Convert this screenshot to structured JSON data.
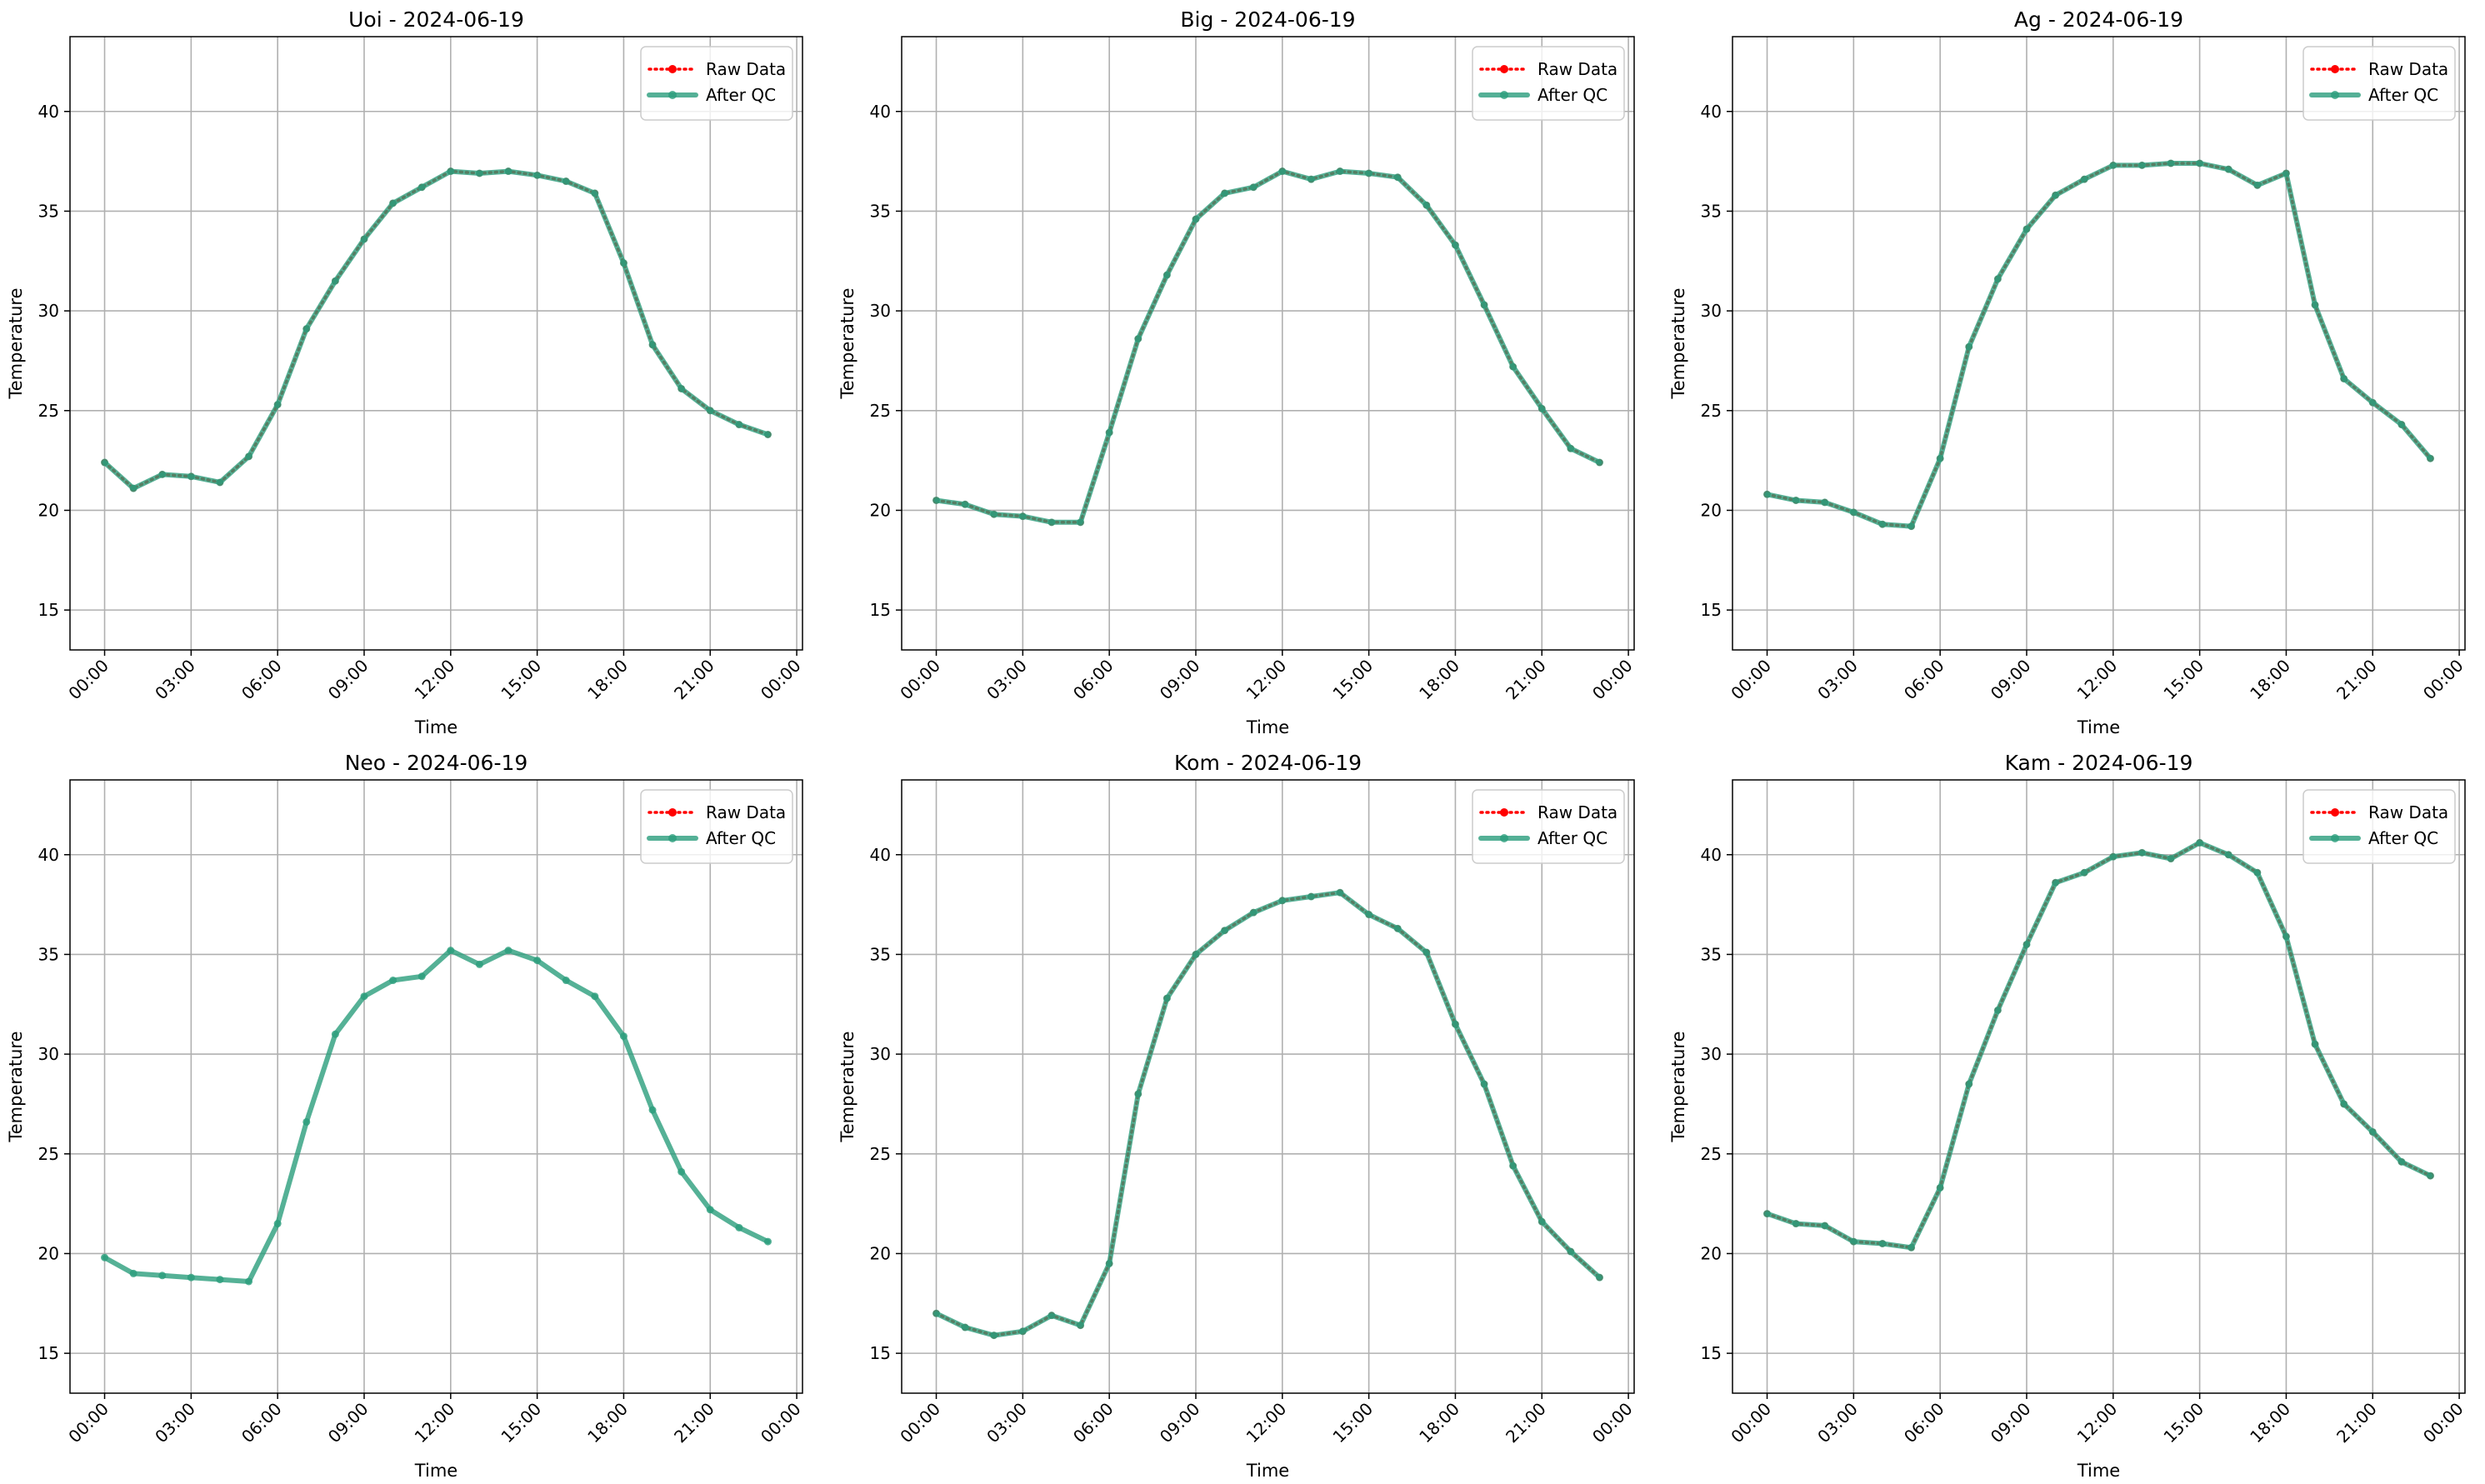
{
  "chart_data": [
    {
      "type": "line",
      "title": "Uoi - 2024-06-19",
      "xlabel": "Time",
      "ylabel": "Temperature",
      "x": [
        0,
        1,
        2,
        3,
        4,
        5,
        6,
        7,
        8,
        9,
        10,
        11,
        12,
        13,
        14,
        15,
        16,
        17,
        18,
        19,
        20,
        21,
        22,
        23
      ],
      "series": [
        {
          "name": "Raw Data",
          "color": "#ff0000",
          "values": [
            22.4,
            21.1,
            21.8,
            21.7,
            21.4,
            22.7,
            25.3,
            29.1,
            31.5,
            33.6,
            35.4,
            36.2,
            37.0,
            36.9,
            37.0,
            36.8,
            36.5,
            35.9,
            32.4,
            28.3,
            26.1,
            25.0,
            24.3,
            23.8
          ]
        },
        {
          "name": "After QC",
          "color": "#2a9d7c",
          "values": [
            22.4,
            21.1,
            21.8,
            21.7,
            21.4,
            22.7,
            25.3,
            29.1,
            31.5,
            33.6,
            35.4,
            36.2,
            37.0,
            36.9,
            37.0,
            36.8,
            36.5,
            35.9,
            32.4,
            28.3,
            26.1,
            25.0,
            24.3,
            23.8
          ]
        }
      ],
      "xlim": [
        -1.2,
        24.2
      ],
      "ylim": [
        13,
        43.75
      ],
      "xticks": [
        {
          "value": 0,
          "label": "00:00"
        },
        {
          "value": 3,
          "label": "03:00"
        },
        {
          "value": 6,
          "label": "06:00"
        },
        {
          "value": 9,
          "label": "09:00"
        },
        {
          "value": 12,
          "label": "12:00"
        },
        {
          "value": 15,
          "label": "15:00"
        },
        {
          "value": 18,
          "label": "18:00"
        },
        {
          "value": 21,
          "label": "21:00"
        },
        {
          "value": 24,
          "label": "00:00"
        }
      ],
      "yticks": [
        15,
        20,
        25,
        30,
        35,
        40
      ],
      "grid": true,
      "legend": "upper right"
    },
    {
      "type": "line",
      "title": "Big - 2024-06-19",
      "xlabel": "Time",
      "ylabel": "Temperature",
      "x": [
        0,
        1,
        2,
        3,
        4,
        5,
        6,
        7,
        8,
        9,
        10,
        11,
        12,
        13,
        14,
        15,
        16,
        17,
        18,
        19,
        20,
        21,
        22,
        23
      ],
      "series": [
        {
          "name": "Raw Data",
          "color": "#ff0000",
          "values": [
            20.5,
            20.3,
            19.8,
            19.7,
            19.4,
            19.4,
            23.9,
            28.6,
            31.8,
            34.6,
            35.9,
            36.2,
            37.0,
            36.6,
            37.0,
            36.9,
            36.7,
            35.3,
            33.3,
            30.3,
            27.2,
            25.1,
            23.1,
            22.4
          ]
        },
        {
          "name": "After QC",
          "color": "#2a9d7c",
          "values": [
            20.5,
            20.3,
            19.8,
            19.7,
            19.4,
            19.4,
            23.9,
            28.6,
            31.8,
            34.6,
            35.9,
            36.2,
            37.0,
            36.6,
            37.0,
            36.9,
            36.7,
            35.3,
            33.3,
            30.3,
            27.2,
            25.1,
            23.1,
            22.4
          ]
        }
      ],
      "xlim": [
        -1.2,
        24.2
      ],
      "ylim": [
        13,
        43.75
      ],
      "xticks": [
        {
          "value": 0,
          "label": "00:00"
        },
        {
          "value": 3,
          "label": "03:00"
        },
        {
          "value": 6,
          "label": "06:00"
        },
        {
          "value": 9,
          "label": "09:00"
        },
        {
          "value": 12,
          "label": "12:00"
        },
        {
          "value": 15,
          "label": "15:00"
        },
        {
          "value": 18,
          "label": "18:00"
        },
        {
          "value": 21,
          "label": "21:00"
        },
        {
          "value": 24,
          "label": "00:00"
        }
      ],
      "yticks": [
        15,
        20,
        25,
        30,
        35,
        40
      ],
      "grid": true,
      "legend": "upper right"
    },
    {
      "type": "line",
      "title": "Ag - 2024-06-19",
      "xlabel": "Time",
      "ylabel": "Temperature",
      "x": [
        0,
        1,
        2,
        3,
        4,
        5,
        6,
        7,
        8,
        9,
        10,
        11,
        12,
        13,
        14,
        15,
        16,
        17,
        18,
        19,
        20,
        21,
        22,
        23
      ],
      "series": [
        {
          "name": "Raw Data",
          "color": "#ff0000",
          "values": [
            20.8,
            20.5,
            20.4,
            19.9,
            19.3,
            19.2,
            22.6,
            28.2,
            31.6,
            34.1,
            35.8,
            36.6,
            37.3,
            37.3,
            37.4,
            37.4,
            37.1,
            36.3,
            36.9,
            30.3,
            26.6,
            25.4,
            24.3,
            22.6
          ]
        },
        {
          "name": "After QC",
          "color": "#2a9d7c",
          "values": [
            20.8,
            20.5,
            20.4,
            19.9,
            19.3,
            19.2,
            22.6,
            28.2,
            31.6,
            34.1,
            35.8,
            36.6,
            37.3,
            37.3,
            37.4,
            37.4,
            37.1,
            36.3,
            36.9,
            30.3,
            26.6,
            25.4,
            24.3,
            22.6
          ]
        }
      ],
      "xlim": [
        -1.2,
        24.2
      ],
      "ylim": [
        13,
        43.75
      ],
      "xticks": [
        {
          "value": 0,
          "label": "00:00"
        },
        {
          "value": 3,
          "label": "03:00"
        },
        {
          "value": 6,
          "label": "06:00"
        },
        {
          "value": 9,
          "label": "09:00"
        },
        {
          "value": 12,
          "label": "12:00"
        },
        {
          "value": 15,
          "label": "15:00"
        },
        {
          "value": 18,
          "label": "18:00"
        },
        {
          "value": 21,
          "label": "21:00"
        },
        {
          "value": 24,
          "label": "00:00"
        }
      ],
      "yticks": [
        15,
        20,
        25,
        30,
        35,
        40
      ],
      "grid": true,
      "legend": "upper right"
    },
    {
      "type": "line",
      "title": "Neo - 2024-06-19",
      "xlabel": "Time",
      "ylabel": "Temperature",
      "x": [
        0,
        1,
        2,
        3,
        4,
        5,
        6,
        7,
        8,
        9,
        10,
        11,
        12,
        13,
        14,
        15,
        16,
        17,
        18,
        19,
        20,
        21,
        22,
        23
      ],
      "series": [
        {
          "name": "Raw Data",
          "color": "#ff0000",
          "values": [
            null,
            null,
            null,
            null,
            null,
            null,
            null,
            null,
            null,
            null,
            null,
            null,
            null,
            null,
            null,
            null,
            null,
            null,
            null,
            null,
            null,
            null,
            null,
            null
          ]
        },
        {
          "name": "After QC",
          "color": "#2a9d7c",
          "values": [
            19.8,
            19.0,
            18.9,
            18.8,
            18.7,
            18.6,
            21.5,
            26.6,
            31.0,
            32.9,
            33.7,
            33.9,
            35.2,
            34.5,
            35.2,
            34.7,
            33.7,
            32.9,
            30.9,
            27.2,
            24.1,
            22.2,
            21.3,
            20.6
          ]
        }
      ],
      "xlim": [
        -1.2,
        24.2
      ],
      "ylim": [
        13,
        43.75
      ],
      "xticks": [
        {
          "value": 0,
          "label": "00:00"
        },
        {
          "value": 3,
          "label": "03:00"
        },
        {
          "value": 6,
          "label": "06:00"
        },
        {
          "value": 9,
          "label": "09:00"
        },
        {
          "value": 12,
          "label": "12:00"
        },
        {
          "value": 15,
          "label": "15:00"
        },
        {
          "value": 18,
          "label": "18:00"
        },
        {
          "value": 21,
          "label": "21:00"
        },
        {
          "value": 24,
          "label": "00:00"
        }
      ],
      "yticks": [
        15,
        20,
        25,
        30,
        35,
        40
      ],
      "grid": true,
      "legend": "upper right"
    },
    {
      "type": "line",
      "title": "Kom - 2024-06-19",
      "xlabel": "Time",
      "ylabel": "Temperature",
      "x": [
        0,
        1,
        2,
        3,
        4,
        5,
        6,
        7,
        8,
        9,
        10,
        11,
        12,
        13,
        14,
        15,
        16,
        17,
        18,
        19,
        20,
        21,
        22,
        23
      ],
      "series": [
        {
          "name": "Raw Data",
          "color": "#ff0000",
          "values": [
            17.0,
            16.3,
            15.9,
            16.1,
            16.9,
            16.4,
            19.5,
            28.0,
            32.8,
            35.0,
            36.2,
            37.1,
            37.7,
            37.9,
            38.1,
            37.0,
            36.3,
            35.1,
            31.5,
            28.5,
            24.4,
            21.6,
            20.1,
            18.8
          ]
        },
        {
          "name": "After QC",
          "color": "#2a9d7c",
          "values": [
            17.0,
            16.3,
            15.9,
            16.1,
            16.9,
            16.4,
            19.5,
            28.0,
            32.8,
            35.0,
            36.2,
            37.1,
            37.7,
            37.9,
            38.1,
            37.0,
            36.3,
            35.1,
            31.5,
            28.5,
            24.4,
            21.6,
            20.1,
            18.8
          ]
        }
      ],
      "xlim": [
        -1.2,
        24.2
      ],
      "ylim": [
        13,
        43.75
      ],
      "xticks": [
        {
          "value": 0,
          "label": "00:00"
        },
        {
          "value": 3,
          "label": "03:00"
        },
        {
          "value": 6,
          "label": "06:00"
        },
        {
          "value": 9,
          "label": "09:00"
        },
        {
          "value": 12,
          "label": "12:00"
        },
        {
          "value": 15,
          "label": "15:00"
        },
        {
          "value": 18,
          "label": "18:00"
        },
        {
          "value": 21,
          "label": "21:00"
        },
        {
          "value": 24,
          "label": "00:00"
        }
      ],
      "yticks": [
        15,
        20,
        25,
        30,
        35,
        40
      ],
      "grid": true,
      "legend": "upper right"
    },
    {
      "type": "line",
      "title": "Kam - 2024-06-19",
      "xlabel": "Time",
      "ylabel": "Temperature",
      "x": [
        0,
        1,
        2,
        3,
        4,
        5,
        6,
        7,
        8,
        9,
        10,
        11,
        12,
        13,
        14,
        15,
        16,
        17,
        18,
        19,
        20,
        21,
        22,
        23
      ],
      "series": [
        {
          "name": "Raw Data",
          "color": "#ff0000",
          "values": [
            22.0,
            21.5,
            21.4,
            20.6,
            20.5,
            20.3,
            23.3,
            28.5,
            32.2,
            35.5,
            38.6,
            39.1,
            39.9,
            40.1,
            39.8,
            40.6,
            40.0,
            39.1,
            35.9,
            30.5,
            27.5,
            26.1,
            24.6,
            23.9
          ]
        },
        {
          "name": "After QC",
          "color": "#2a9d7c",
          "values": [
            22.0,
            21.5,
            21.4,
            20.6,
            20.5,
            20.3,
            23.3,
            28.5,
            32.2,
            35.5,
            38.6,
            39.1,
            39.9,
            40.1,
            39.8,
            40.6,
            40.0,
            39.1,
            35.9,
            30.5,
            27.5,
            26.1,
            24.6,
            23.9
          ]
        }
      ],
      "xlim": [
        -1.2,
        24.2
      ],
      "ylim": [
        13,
        43.75
      ],
      "xticks": [
        {
          "value": 0,
          "label": "00:00"
        },
        {
          "value": 3,
          "label": "03:00"
        },
        {
          "value": 6,
          "label": "06:00"
        },
        {
          "value": 9,
          "label": "09:00"
        },
        {
          "value": 12,
          "label": "12:00"
        },
        {
          "value": 15,
          "label": "15:00"
        },
        {
          "value": 18,
          "label": "18:00"
        },
        {
          "value": 21,
          "label": "21:00"
        },
        {
          "value": 24,
          "label": "00:00"
        }
      ],
      "yticks": [
        15,
        20,
        25,
        30,
        35,
        40
      ],
      "grid": true,
      "legend": "upper right"
    }
  ]
}
